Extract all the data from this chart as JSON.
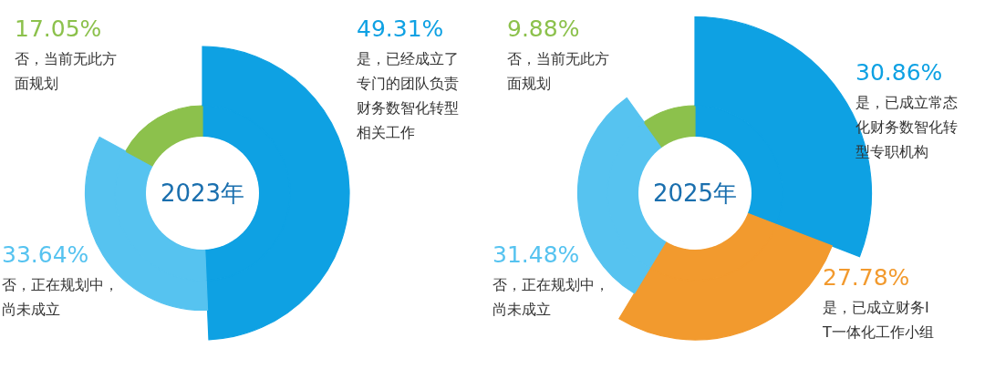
{
  "chart_data": [
    {
      "type": "donut",
      "title": "2023年",
      "categories": [
        "是，已经成立了专门的团队负责财务数智化转型相关工作",
        "否，正在规划中，尚未成立",
        "否，当前无此方面规划"
      ],
      "values": [
        49.31,
        33.64,
        17.05
      ],
      "colors": [
        "#0ea1e3",
        "#56c3f0",
        "#8cc14c"
      ],
      "value_labels": [
        "49.31%",
        "33.64%",
        "17.05%"
      ]
    },
    {
      "type": "donut",
      "title": "2025年",
      "categories": [
        "是，已成立常态化财务数智化转型专职机构",
        "是，已成立财务IT一体化工作小组",
        "否，正在规划中，尚未成立",
        "否，当前无此方面规划"
      ],
      "values": [
        30.86,
        27.78,
        31.48,
        9.88
      ],
      "colors": [
        "#0ea1e3",
        "#f29a2e",
        "#56c3f0",
        "#8cc14c"
      ],
      "value_labels": [
        "30.86%",
        "27.78%",
        "31.48%",
        "9.88%"
      ]
    }
  ]
}
